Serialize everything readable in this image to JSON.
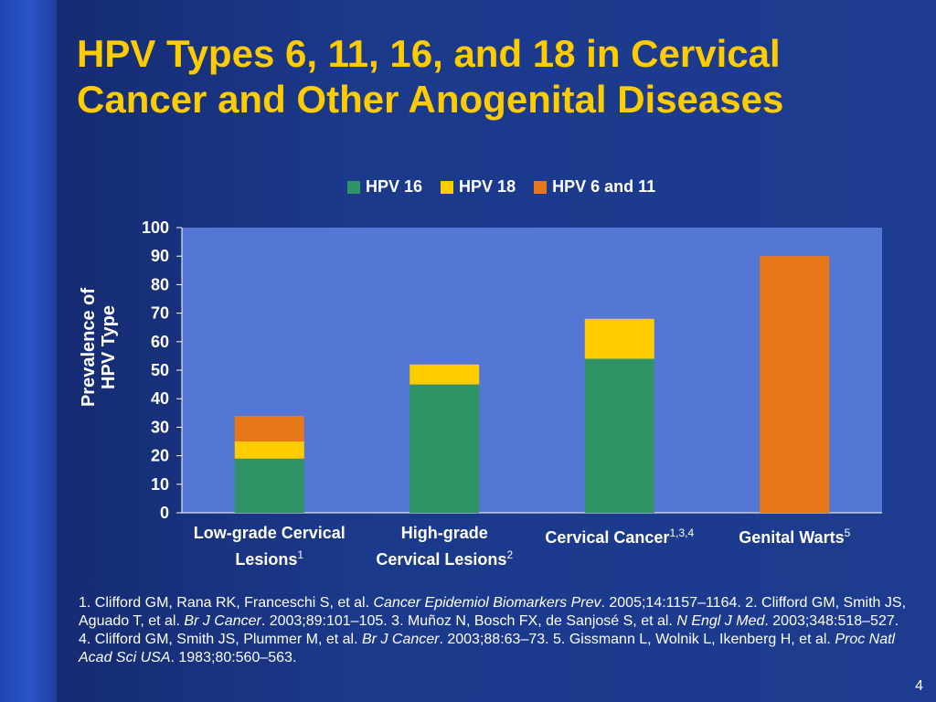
{
  "title": {
    "line1": "HPV Types 6, 11, 16, and 18 in Cervical",
    "line2": "Cancer and Other Anogenital Diseases"
  },
  "legend": [
    {
      "label": "HPV 16",
      "color": "#2e9466"
    },
    {
      "label": "HPV 18",
      "color": "#ffcc00"
    },
    {
      "label": "HPV 6 and 11",
      "color": "#e87817"
    }
  ],
  "ylabel": {
    "line1": "Prevalence of",
    "line2": "HPV Type"
  },
  "chart_data": {
    "type": "bar",
    "stacked": true,
    "categories": [
      {
        "line1": "Low-grade Cervical",
        "line2": "Lesions",
        "sup": "1"
      },
      {
        "line1": "High-grade",
        "line2": "Cervical Lesions",
        "sup": "2"
      },
      {
        "line1": "Cervical Cancer",
        "line2": "",
        "sup": "1,3,4"
      },
      {
        "line1": "Genital Warts",
        "line2": "",
        "sup": "5"
      }
    ],
    "series": [
      {
        "name": "HPV 16",
        "color": "#2e9466",
        "values": [
          19,
          45,
          54,
          0
        ]
      },
      {
        "name": "HPV 18",
        "color": "#ffcc00",
        "values": [
          6,
          7,
          14,
          0
        ]
      },
      {
        "name": "HPV 6 and 11",
        "color": "#e87817",
        "values": [
          9,
          0,
          0,
          90
        ]
      }
    ],
    "ylim": [
      0,
      100
    ],
    "yticks": [
      "0",
      "10",
      "20",
      "30",
      "40",
      "50",
      "60",
      "70",
      "80",
      "90",
      "100"
    ],
    "ylabel": "Prevalence of HPV Type",
    "legend_position": "top",
    "grid": false,
    "plot_background": "#5477d6"
  },
  "references": [
    {
      "text": "1. Clifford GM, Rana RK, Franceschi S, et al. ",
      "italic": false
    },
    {
      "text": "Cancer Epidemiol Biomarkers Prev",
      "italic": true
    },
    {
      "text": ". 2005;14:1157–1164. 2. Clifford GM, Smith JS, Aguado T, et al. ",
      "italic": false
    },
    {
      "text": "Br J Cancer",
      "italic": true
    },
    {
      "text": ". 2003;89:101–105. 3. Muñoz N, Bosch FX, de Sanjosé S, et al. ",
      "italic": false
    },
    {
      "text": "N Engl J Med",
      "italic": true
    },
    {
      "text": ". 2003;348:518–527. 4. Clifford GM, Smith JS, Plummer M, et al. ",
      "italic": false
    },
    {
      "text": "Br J Cancer",
      "italic": true
    },
    {
      "text": ". 2003;88:63–73. 5. Gissmann L, Wolnik L, Ikenberg H, et al. ",
      "italic": false
    },
    {
      "text": "Proc Natl Acad Sci USA",
      "italic": true
    },
    {
      "text": ". 1983;80:560–563.",
      "italic": false
    }
  ],
  "page_number": "4"
}
